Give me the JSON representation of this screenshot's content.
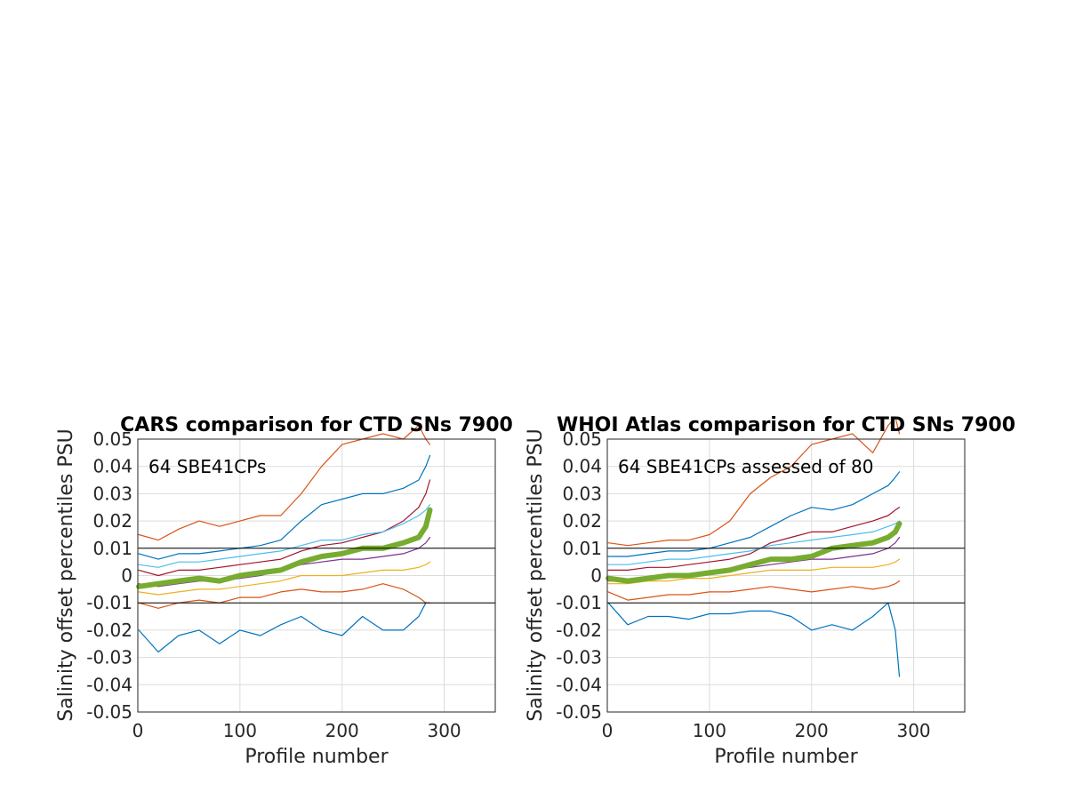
{
  "chart_data": [
    {
      "type": "line",
      "title": "CARS comparison for CTD SNs 7900",
      "xlabel": "Profile number",
      "ylabel": "Salinity offset percentiles PSU",
      "annotation": "64 SBE41CPs",
      "xlim": [
        0,
        350
      ],
      "ylim": [
        -0.05,
        0.05
      ],
      "xticks": [
        "0",
        "100",
        "200",
        "300"
      ],
      "yticks": [
        "-0.05",
        "-0.04",
        "-0.03",
        "-0.02",
        "-0.01",
        "0",
        "0.01",
        "0.02",
        "0.03",
        "0.04",
        "0.05"
      ],
      "grid": true,
      "reference_lines": [
        0.01,
        -0.01
      ],
      "series": [
        {
          "color": "#0072BD",
          "x": [
            1,
            20,
            40,
            60,
            80,
            100,
            120,
            140,
            160,
            180,
            200,
            220,
            240,
            260,
            275,
            282,
            286
          ],
          "y": [
            -0.02,
            -0.028,
            -0.022,
            -0.02,
            -0.025,
            -0.02,
            -0.022,
            -0.018,
            -0.015,
            -0.02,
            -0.022,
            -0.015,
            -0.02,
            -0.02,
            -0.015,
            -0.01,
            -0.01
          ]
        },
        {
          "color": "#D95319",
          "x": [
            1,
            20,
            40,
            60,
            80,
            100,
            120,
            140,
            160,
            180,
            200,
            220,
            240,
            260,
            275,
            282,
            286
          ],
          "y": [
            -0.01,
            -0.012,
            -0.01,
            -0.009,
            -0.01,
            -0.008,
            -0.008,
            -0.006,
            -0.005,
            -0.006,
            -0.006,
            -0.005,
            -0.003,
            -0.005,
            -0.008,
            -0.01,
            -0.01
          ]
        },
        {
          "color": "#EDB120",
          "x": [
            1,
            20,
            40,
            60,
            80,
            100,
            120,
            140,
            160,
            180,
            200,
            220,
            240,
            260,
            275,
            282,
            286
          ],
          "y": [
            -0.006,
            -0.007,
            -0.006,
            -0.005,
            -0.005,
            -0.004,
            -0.003,
            -0.002,
            0.0,
            0.0,
            0.0,
            0.001,
            0.002,
            0.002,
            0.003,
            0.004,
            0.005
          ]
        },
        {
          "color": "#7E2F8E",
          "x": [
            1,
            20,
            40,
            60,
            80,
            100,
            120,
            140,
            160,
            180,
            200,
            220,
            240,
            260,
            275,
            282,
            286
          ],
          "y": [
            -0.003,
            -0.004,
            -0.003,
            -0.002,
            -0.002,
            -0.001,
            0.0,
            0.002,
            0.004,
            0.005,
            0.006,
            0.006,
            0.007,
            0.008,
            0.01,
            0.012,
            0.014
          ]
        },
        {
          "color": "#A2142F",
          "x": [
            1,
            20,
            40,
            60,
            80,
            100,
            120,
            140,
            160,
            180,
            200,
            220,
            240,
            260,
            275,
            282,
            286
          ],
          "y": [
            0.002,
            0.0,
            0.002,
            0.002,
            0.003,
            0.004,
            0.005,
            0.006,
            0.009,
            0.011,
            0.012,
            0.014,
            0.016,
            0.02,
            0.025,
            0.03,
            0.035
          ]
        },
        {
          "color": "#4DBEEE",
          "x": [
            1,
            20,
            40,
            60,
            80,
            100,
            120,
            140,
            160,
            180,
            200,
            220,
            240,
            260,
            275,
            282,
            286
          ],
          "y": [
            0.004,
            0.003,
            0.005,
            0.005,
            0.006,
            0.007,
            0.008,
            0.009,
            0.011,
            0.013,
            0.013,
            0.015,
            0.016,
            0.019,
            0.022,
            0.024,
            0.026
          ]
        },
        {
          "color": "#0072BD",
          "x": [
            1,
            20,
            40,
            60,
            80,
            100,
            120,
            140,
            160,
            180,
            200,
            220,
            240,
            260,
            275,
            282,
            286
          ],
          "y": [
            0.008,
            0.006,
            0.008,
            0.008,
            0.009,
            0.01,
            0.011,
            0.013,
            0.02,
            0.026,
            0.028,
            0.03,
            0.03,
            0.032,
            0.035,
            0.04,
            0.044
          ]
        },
        {
          "color": "#D95319",
          "x": [
            1,
            20,
            40,
            60,
            80,
            100,
            120,
            140,
            160,
            180,
            200,
            220,
            240,
            260,
            275,
            282,
            286
          ],
          "y": [
            0.015,
            0.013,
            0.017,
            0.02,
            0.018,
            0.02,
            0.022,
            0.022,
            0.03,
            0.04,
            0.048,
            0.05,
            0.052,
            0.05,
            0.055,
            0.05,
            0.048
          ]
        },
        {
          "color": "#77AC30",
          "x": [
            1,
            20,
            40,
            60,
            80,
            100,
            120,
            140,
            160,
            180,
            200,
            220,
            240,
            260,
            275,
            282,
            286
          ],
          "y": [
            -0.004,
            -0.003,
            -0.002,
            -0.001,
            -0.002,
            0.0,
            0.001,
            0.002,
            0.005,
            0.007,
            0.008,
            0.01,
            0.01,
            0.012,
            0.014,
            0.018,
            0.024
          ]
        }
      ]
    },
    {
      "type": "line",
      "title": "WHOI Atlas comparison for CTD SNs 7900",
      "xlabel": "Profile number",
      "ylabel": "Salinity offset percentiles PSU",
      "annotation": "64 SBE41CPs assessed of 80",
      "xlim": [
        0,
        350
      ],
      "ylim": [
        -0.05,
        0.05
      ],
      "xticks": [
        "0",
        "100",
        "200",
        "300"
      ],
      "yticks": [
        "-0.05",
        "-0.04",
        "-0.03",
        "-0.02",
        "-0.01",
        "0",
        "0.01",
        "0.02",
        "0.03",
        "0.04",
        "0.05"
      ],
      "grid": true,
      "reference_lines": [
        0.01,
        -0.01
      ],
      "series": [
        {
          "color": "#0072BD",
          "x": [
            1,
            20,
            40,
            60,
            80,
            100,
            120,
            140,
            160,
            180,
            200,
            220,
            240,
            260,
            275,
            282,
            286
          ],
          "y": [
            -0.01,
            -0.018,
            -0.015,
            -0.015,
            -0.016,
            -0.014,
            -0.014,
            -0.013,
            -0.013,
            -0.015,
            -0.02,
            -0.018,
            -0.02,
            -0.015,
            -0.01,
            -0.02,
            -0.037
          ]
        },
        {
          "color": "#D95319",
          "x": [
            1,
            20,
            40,
            60,
            80,
            100,
            120,
            140,
            160,
            180,
            200,
            220,
            240,
            260,
            275,
            282,
            286
          ],
          "y": [
            -0.006,
            -0.009,
            -0.008,
            -0.007,
            -0.007,
            -0.006,
            -0.006,
            -0.005,
            -0.004,
            -0.005,
            -0.006,
            -0.005,
            -0.004,
            -0.005,
            -0.004,
            -0.003,
            -0.002
          ]
        },
        {
          "color": "#EDB120",
          "x": [
            1,
            20,
            40,
            60,
            80,
            100,
            120,
            140,
            160,
            180,
            200,
            220,
            240,
            260,
            275,
            282,
            286
          ],
          "y": [
            -0.003,
            -0.003,
            -0.002,
            -0.002,
            -0.001,
            -0.001,
            0.0,
            0.001,
            0.002,
            0.002,
            0.002,
            0.003,
            0.003,
            0.003,
            0.004,
            0.005,
            0.006
          ]
        },
        {
          "color": "#7E2F8E",
          "x": [
            1,
            20,
            40,
            60,
            80,
            100,
            120,
            140,
            160,
            180,
            200,
            220,
            240,
            260,
            275,
            282,
            286
          ],
          "y": [
            -0.002,
            -0.002,
            -0.001,
            0.0,
            0.0,
            0.001,
            0.002,
            0.003,
            0.004,
            0.005,
            0.006,
            0.006,
            0.007,
            0.008,
            0.01,
            0.012,
            0.014
          ]
        },
        {
          "color": "#A2142F",
          "x": [
            1,
            20,
            40,
            60,
            80,
            100,
            120,
            140,
            160,
            180,
            200,
            220,
            240,
            260,
            275,
            282,
            286
          ],
          "y": [
            0.002,
            0.002,
            0.003,
            0.003,
            0.004,
            0.005,
            0.006,
            0.008,
            0.012,
            0.014,
            0.016,
            0.016,
            0.018,
            0.02,
            0.022,
            0.024,
            0.025
          ]
        },
        {
          "color": "#4DBEEE",
          "x": [
            1,
            20,
            40,
            60,
            80,
            100,
            120,
            140,
            160,
            180,
            200,
            220,
            240,
            260,
            275,
            282,
            286
          ],
          "y": [
            0.004,
            0.004,
            0.005,
            0.006,
            0.006,
            0.007,
            0.008,
            0.009,
            0.011,
            0.012,
            0.013,
            0.014,
            0.015,
            0.016,
            0.018,
            0.019,
            0.02
          ]
        },
        {
          "color": "#0072BD",
          "x": [
            1,
            20,
            40,
            60,
            80,
            100,
            120,
            140,
            160,
            180,
            200,
            220,
            240,
            260,
            275,
            282,
            286
          ],
          "y": [
            0.007,
            0.007,
            0.008,
            0.009,
            0.009,
            0.01,
            0.012,
            0.014,
            0.018,
            0.022,
            0.025,
            0.024,
            0.026,
            0.03,
            0.033,
            0.036,
            0.038
          ]
        },
        {
          "color": "#D95319",
          "x": [
            1,
            20,
            40,
            60,
            80,
            100,
            120,
            140,
            160,
            180,
            200,
            220,
            240,
            260,
            275,
            282,
            286
          ],
          "y": [
            0.012,
            0.011,
            0.012,
            0.013,
            0.013,
            0.015,
            0.02,
            0.03,
            0.036,
            0.04,
            0.048,
            0.05,
            0.052,
            0.045,
            0.055,
            0.058,
            0.052
          ]
        },
        {
          "color": "#77AC30",
          "x": [
            1,
            20,
            40,
            60,
            80,
            100,
            120,
            140,
            160,
            180,
            200,
            220,
            240,
            260,
            275,
            282,
            286
          ],
          "y": [
            -0.001,
            -0.002,
            -0.001,
            0.0,
            0.0,
            0.001,
            0.002,
            0.004,
            0.006,
            0.006,
            0.007,
            0.01,
            0.011,
            0.012,
            0.014,
            0.016,
            0.019
          ]
        }
      ]
    }
  ]
}
